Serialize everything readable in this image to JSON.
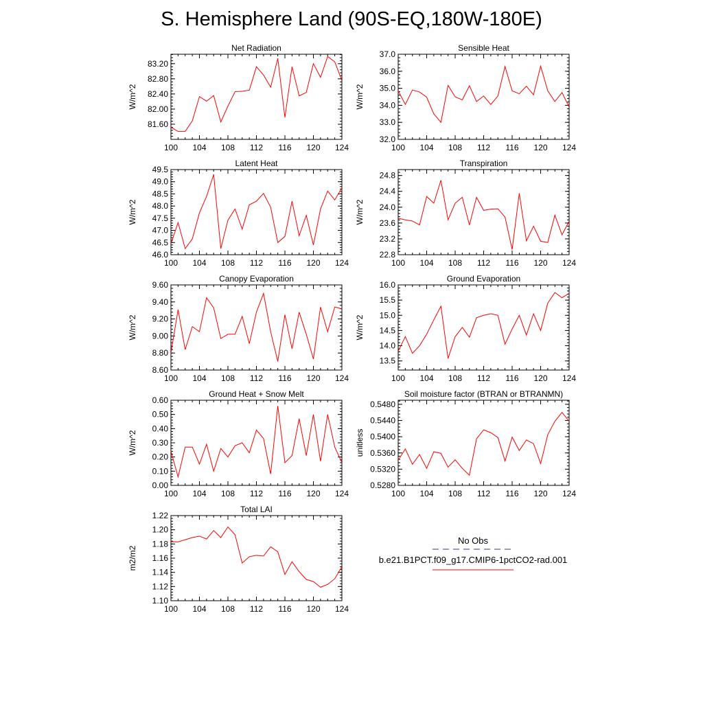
{
  "page": {
    "title": "S. Hemisphere Land (90S-EQ,180W-180E)"
  },
  "colors": {
    "model_line": "#ff0000",
    "obs_line": "#3333aa",
    "axis": "#000000"
  },
  "legend": {
    "obs_label": "No Obs",
    "model_label": "b.e21.B1PCT.f09_g17.CMIP6-1pctCO2-rad.001"
  },
  "chart_data": [
    {
      "type": "line",
      "title": "Net Radiation",
      "ylabel": "W/m^2",
      "xlim": [
        100,
        124
      ],
      "xticks": [
        "100",
        "104",
        "108",
        "112",
        "116",
        "120",
        "124"
      ],
      "ylim": [
        81.2,
        83.45
      ],
      "yticks": [
        "81.60",
        "82.00",
        "82.40",
        "82.80",
        "83.20"
      ],
      "ytick_values": [
        81.6,
        82.0,
        82.4,
        82.8,
        83.2
      ],
      "x": [
        100,
        101,
        102,
        103,
        104,
        105,
        106,
        107,
        108,
        109,
        110,
        111,
        112,
        113,
        114,
        115,
        116,
        117,
        118,
        119,
        120,
        121,
        122,
        123,
        124
      ],
      "series": [
        {
          "values": [
            81.52,
            81.41,
            81.41,
            81.69,
            82.33,
            82.21,
            82.36,
            81.66,
            82.08,
            82.46,
            82.47,
            82.5,
            83.12,
            82.9,
            82.58,
            83.34,
            81.78,
            83.12,
            82.35,
            82.44,
            83.2,
            82.84,
            83.39,
            83.25,
            82.75
          ]
        }
      ]
    },
    {
      "type": "line",
      "title": "Sensible Heat",
      "ylabel": "W/m^2",
      "xlim": [
        100,
        124
      ],
      "xticks": [
        "100",
        "104",
        "108",
        "112",
        "116",
        "120",
        "124"
      ],
      "ylim": [
        32.0,
        37.0
      ],
      "yticks": [
        "32.0",
        "33.0",
        "34.0",
        "35.0",
        "36.0",
        "37.0"
      ],
      "ytick_values": [
        32,
        33,
        34,
        35,
        36,
        37
      ],
      "x": [
        100,
        101,
        102,
        103,
        104,
        105,
        106,
        107,
        108,
        109,
        110,
        111,
        112,
        113,
        114,
        115,
        116,
        117,
        118,
        119,
        120,
        121,
        122,
        123,
        124
      ],
      "series": [
        {
          "values": [
            34.85,
            34.05,
            34.9,
            34.78,
            34.48,
            33.5,
            33.0,
            35.17,
            34.5,
            34.32,
            35.15,
            34.22,
            34.55,
            34.05,
            34.55,
            36.28,
            34.85,
            34.68,
            35.12,
            34.62,
            36.3,
            34.85,
            34.22,
            34.75,
            33.9
          ]
        }
      ]
    },
    {
      "type": "line",
      "title": "Latent Heat",
      "ylabel": "W/m^2",
      "xlim": [
        100,
        124
      ],
      "xticks": [
        "100",
        "104",
        "108",
        "112",
        "116",
        "120",
        "124"
      ],
      "ylim": [
        46.0,
        49.5
      ],
      "yticks": [
        "46.0",
        "46.5",
        "47.0",
        "47.5",
        "48.0",
        "48.5",
        "49.0",
        "49.5"
      ],
      "ytick_values": [
        46.0,
        46.5,
        47.0,
        47.5,
        48.0,
        48.5,
        49.0,
        49.5
      ],
      "x": [
        100,
        101,
        102,
        103,
        104,
        105,
        106,
        107,
        108,
        109,
        110,
        111,
        112,
        113,
        114,
        115,
        116,
        117,
        118,
        119,
        120,
        121,
        122,
        123,
        124
      ],
      "series": [
        {
          "values": [
            46.45,
            47.32,
            46.25,
            46.65,
            47.72,
            48.4,
            49.3,
            46.25,
            47.42,
            47.88,
            47.05,
            48.05,
            48.2,
            48.52,
            47.95,
            46.5,
            46.75,
            48.2,
            46.78,
            47.62,
            46.4,
            47.88,
            48.62,
            48.25,
            48.75
          ]
        }
      ]
    },
    {
      "type": "line",
      "title": "Transpiration",
      "ylabel": "W/m^2",
      "xlim": [
        100,
        124
      ],
      "xticks": [
        "100",
        "104",
        "108",
        "112",
        "116",
        "120",
        "124"
      ],
      "ylim": [
        22.8,
        24.95
      ],
      "yticks": [
        "22.8",
        "23.2",
        "23.6",
        "24.0",
        "24.4",
        "24.8"
      ],
      "ytick_values": [
        22.8,
        23.2,
        23.6,
        24.0,
        24.4,
        24.8
      ],
      "x": [
        100,
        101,
        102,
        103,
        104,
        105,
        106,
        107,
        108,
        109,
        110,
        111,
        112,
        113,
        114,
        115,
        116,
        117,
        118,
        119,
        120,
        121,
        122,
        123,
        124
      ],
      "series": [
        {
          "values": [
            23.72,
            23.68,
            23.65,
            23.55,
            24.27,
            24.1,
            24.68,
            23.68,
            24.1,
            24.25,
            23.55,
            24.25,
            23.92,
            23.95,
            23.96,
            23.75,
            22.93,
            24.35,
            23.15,
            23.52,
            23.14,
            23.11,
            23.8,
            23.3,
            23.65
          ]
        }
      ]
    },
    {
      "type": "line",
      "title": "Canopy Evaporation",
      "ylabel": "W/m^2",
      "xlim": [
        100,
        124
      ],
      "xticks": [
        "100",
        "104",
        "108",
        "112",
        "116",
        "120",
        "124"
      ],
      "ylim": [
        8.6,
        9.6
      ],
      "yticks": [
        "8.60",
        "8.80",
        "9.00",
        "9.20",
        "9.40",
        "9.60"
      ],
      "ytick_values": [
        8.6,
        8.8,
        9.0,
        9.2,
        9.4,
        9.6
      ],
      "x": [
        100,
        101,
        102,
        103,
        104,
        105,
        106,
        107,
        108,
        109,
        110,
        111,
        112,
        113,
        114,
        115,
        116,
        117,
        118,
        119,
        120,
        121,
        122,
        123,
        124
      ],
      "series": [
        {
          "values": [
            8.8,
            9.31,
            8.84,
            9.11,
            9.05,
            9.45,
            9.33,
            8.97,
            9.02,
            9.02,
            9.23,
            8.91,
            9.28,
            9.5,
            9.05,
            8.7,
            9.25,
            8.85,
            9.28,
            9.02,
            8.73,
            9.34,
            9.05,
            9.34,
            9.32
          ]
        }
      ]
    },
    {
      "type": "line",
      "title": "Ground Evaporation",
      "ylabel": "W/m^2",
      "xlim": [
        100,
        124
      ],
      "xticks": [
        "100",
        "104",
        "108",
        "112",
        "116",
        "120",
        "124"
      ],
      "ylim": [
        13.2,
        16.0
      ],
      "yticks": [
        "13.5",
        "14.0",
        "14.5",
        "15.0",
        "15.5",
        "16.0"
      ],
      "ytick_values": [
        13.5,
        14.0,
        14.5,
        15.0,
        15.5,
        16.0
      ],
      "x": [
        100,
        101,
        102,
        103,
        104,
        105,
        106,
        107,
        108,
        109,
        110,
        111,
        112,
        113,
        114,
        115,
        116,
        117,
        118,
        119,
        120,
        121,
        122,
        123,
        124
      ],
      "series": [
        {
          "values": [
            13.82,
            14.3,
            13.75,
            14.0,
            14.38,
            14.85,
            15.3,
            13.58,
            14.3,
            14.6,
            14.28,
            14.92,
            15.0,
            15.05,
            15.0,
            14.05,
            14.55,
            15.0,
            14.35,
            15.05,
            14.5,
            15.4,
            15.75,
            15.58,
            15.72
          ]
        }
      ]
    },
    {
      "type": "line",
      "title": "Ground Heat + Snow Melt",
      "ylabel": "W/m^2",
      "xlim": [
        100,
        124
      ],
      "xticks": [
        "100",
        "104",
        "108",
        "112",
        "116",
        "120",
        "124"
      ],
      "ylim": [
        0.0,
        0.6
      ],
      "yticks": [
        "0.00",
        "0.10",
        "0.20",
        "0.30",
        "0.40",
        "0.50",
        "0.60"
      ],
      "ytick_values": [
        0.0,
        0.1,
        0.2,
        0.3,
        0.4,
        0.5,
        0.6
      ],
      "x": [
        100,
        101,
        102,
        103,
        104,
        105,
        106,
        107,
        108,
        109,
        110,
        111,
        112,
        113,
        114,
        115,
        116,
        117,
        118,
        119,
        120,
        121,
        122,
        123,
        124
      ],
      "series": [
        {
          "values": [
            0.24,
            0.06,
            0.27,
            0.27,
            0.15,
            0.29,
            0.1,
            0.26,
            0.2,
            0.28,
            0.3,
            0.23,
            0.39,
            0.33,
            0.08,
            0.56,
            0.16,
            0.21,
            0.47,
            0.21,
            0.5,
            0.17,
            0.5,
            0.27,
            0.16
          ]
        }
      ]
    },
    {
      "type": "line",
      "title": "Soil moisture factor (BTRAN or BTRANMN)",
      "ylabel": "unitless",
      "xlim": [
        100,
        124
      ],
      "xticks": [
        "100",
        "104",
        "108",
        "112",
        "116",
        "120",
        "124"
      ],
      "ylim": [
        0.528,
        0.549
      ],
      "yticks": [
        "0.5280",
        "0.5320",
        "0.5360",
        "0.5400",
        "0.5440",
        "0.5480"
      ],
      "ytick_values": [
        0.528,
        0.532,
        0.536,
        0.54,
        0.544,
        0.548
      ],
      "x": [
        100,
        101,
        102,
        103,
        104,
        105,
        106,
        107,
        108,
        109,
        110,
        111,
        112,
        113,
        114,
        115,
        116,
        117,
        118,
        119,
        120,
        121,
        122,
        123,
        124
      ],
      "series": [
        {
          "values": [
            0.5342,
            0.537,
            0.5332,
            0.5356,
            0.5322,
            0.5363,
            0.5359,
            0.5325,
            0.5343,
            0.5322,
            0.5305,
            0.5395,
            0.5417,
            0.541,
            0.5398,
            0.534,
            0.5399,
            0.5366,
            0.5392,
            0.5383,
            0.5334,
            0.5405,
            0.5438,
            0.546,
            0.5438
          ]
        }
      ]
    },
    {
      "type": "line",
      "title": "Total LAI",
      "ylabel": "m2/m2",
      "xlim": [
        100,
        124
      ],
      "xticks": [
        "100",
        "104",
        "108",
        "112",
        "116",
        "120",
        "124"
      ],
      "ylim": [
        1.1,
        1.22
      ],
      "yticks": [
        "1.10",
        "1.12",
        "1.14",
        "1.16",
        "1.18",
        "1.20",
        "1.22"
      ],
      "ytick_values": [
        1.1,
        1.12,
        1.14,
        1.16,
        1.18,
        1.2,
        1.22
      ],
      "x": [
        100,
        101,
        102,
        103,
        104,
        105,
        106,
        107,
        108,
        109,
        110,
        111,
        112,
        113,
        114,
        115,
        116,
        117,
        118,
        119,
        120,
        121,
        122,
        123,
        124
      ],
      "series": [
        {
          "values": [
            1.183,
            1.183,
            1.186,
            1.189,
            1.191,
            1.187,
            1.199,
            1.189,
            1.204,
            1.193,
            1.153,
            1.162,
            1.164,
            1.163,
            1.176,
            1.169,
            1.137,
            1.155,
            1.141,
            1.13,
            1.127,
            1.119,
            1.123,
            1.131,
            1.148
          ]
        }
      ]
    }
  ]
}
